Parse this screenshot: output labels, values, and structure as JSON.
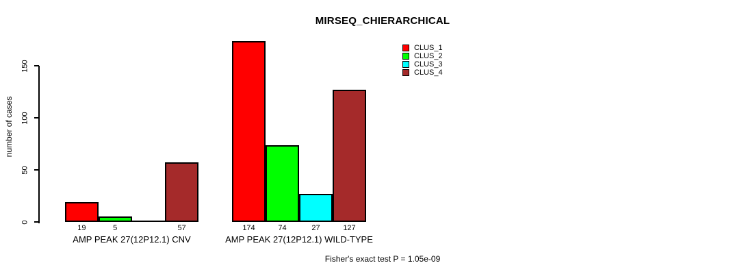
{
  "chart_data": {
    "type": "bar",
    "title": "MIRSEQ_CHIERARCHICAL",
    "ylabel": "number of cases",
    "xlabel": "",
    "categories": [
      "AMP PEAK 27(12P12.1) CNV",
      "AMP PEAK 27(12P12.1) WILD-TYPE"
    ],
    "series": [
      {
        "name": "CLUS_1",
        "color": "#FF0000",
        "values": [
          19,
          174
        ]
      },
      {
        "name": "CLUS_2",
        "color": "#00FF00",
        "values": [
          5,
          74
        ]
      },
      {
        "name": "CLUS_3",
        "color": "#00FFFF",
        "values": [
          0,
          27
        ]
      },
      {
        "name": "CLUS_4",
        "color": "#A52A2A",
        "values": [
          57,
          127
        ]
      }
    ],
    "bar_value_labels": [
      [
        "19",
        "5",
        "",
        "57"
      ],
      [
        "174",
        "74",
        "27",
        "127"
      ]
    ],
    "yticks": [
      "0",
      "50",
      "100",
      "150"
    ],
    "ylim": [
      0,
      150
    ],
    "grid": "off",
    "legend_position": "top-right",
    "annotation": "Fisher's exact test P = 1.05e-09",
    "axis_color": "#000000",
    "background_color": "#FFFFFF"
  }
}
